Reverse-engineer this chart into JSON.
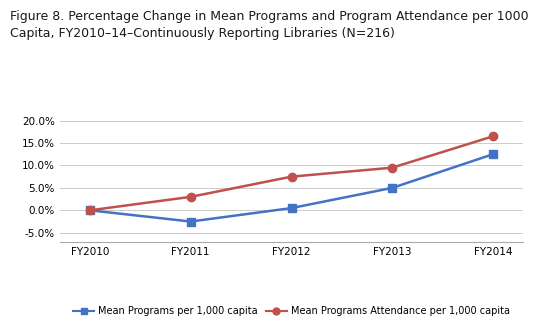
{
  "title": "Figure 8. Percentage Change in Mean Programs and Program Attendance per 1000\nCapita, FY2010–14–Continuously Reporting Libraries (N=216)",
  "categories": [
    "FY2010",
    "FY2011",
    "FY2012",
    "FY2013",
    "FY2014"
  ],
  "blue_values": [
    0.0,
    -0.025,
    0.005,
    0.05,
    0.125
  ],
  "red_values": [
    0.0,
    0.03,
    0.075,
    0.095,
    0.165
  ],
  "blue_color": "#4472C4",
  "red_color": "#C0504D",
  "ylim": [
    -0.07,
    0.225
  ],
  "yticks": [
    -0.05,
    0.0,
    0.05,
    0.1,
    0.15,
    0.2
  ],
  "grid_color": "#CCCCCC",
  "bg_color": "#FFFFFF",
  "legend_blue": "Mean Programs per 1,000 capita",
  "legend_red": "Mean Programs Attendance per 1,000 capita",
  "linewidth": 1.8,
  "markersize": 6,
  "title_fontsize": 9.0,
  "tick_fontsize": 7.5
}
